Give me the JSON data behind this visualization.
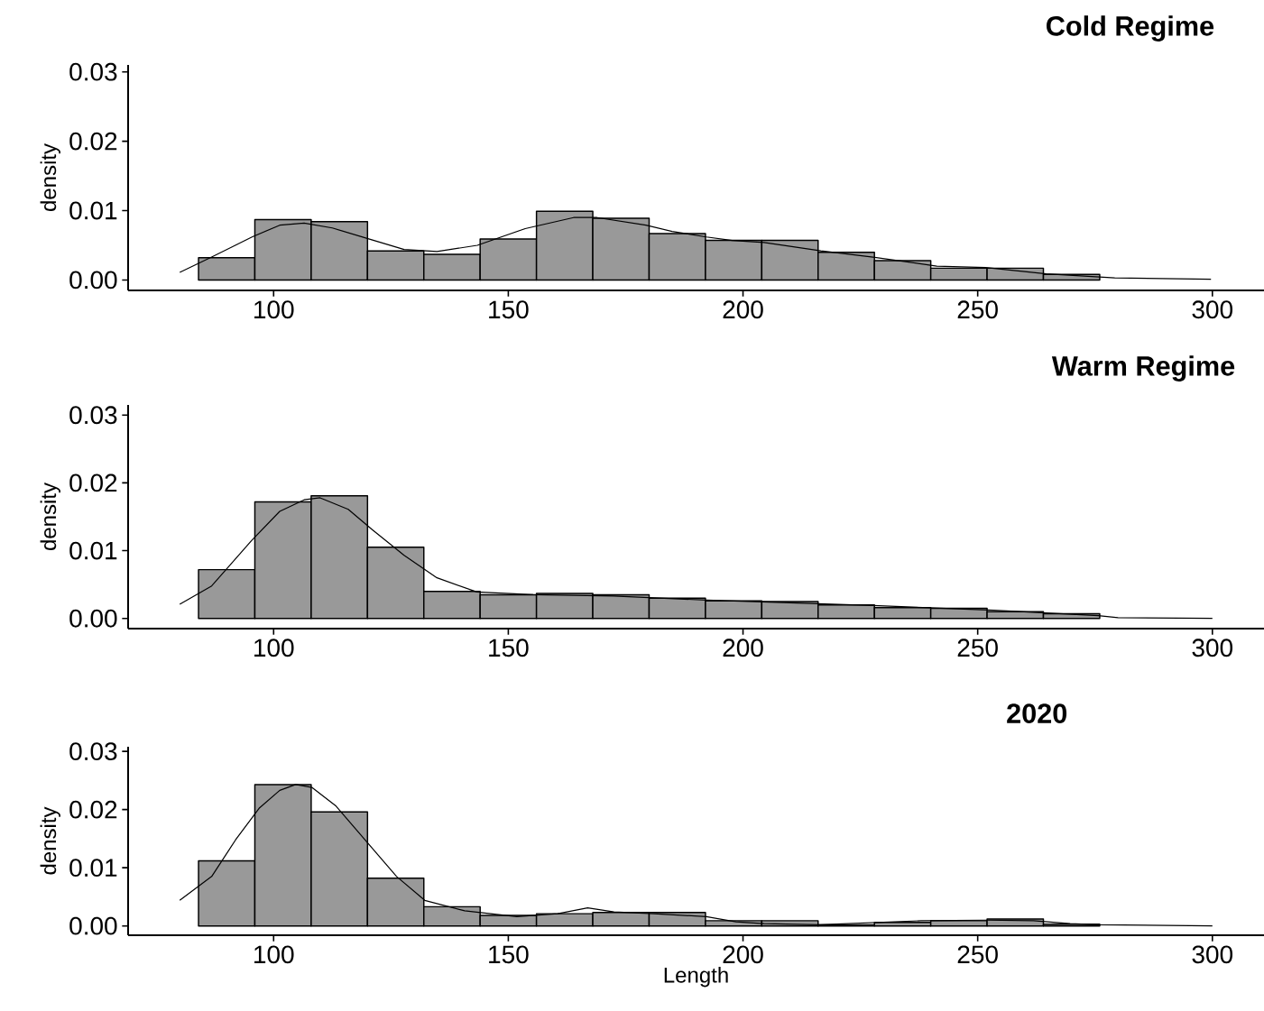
{
  "chart_data": [
    {
      "type": "histogram",
      "title": "Cold Regime",
      "ylabel": "density",
      "xlim": [
        69,
        311
      ],
      "ylim": [
        -0.0015,
        0.031
      ],
      "xticks": [
        100,
        150,
        200,
        250,
        300
      ],
      "yticks": [
        {
          "value": 0,
          "label": "0.00"
        },
        {
          "value": 0.01,
          "label": "0.01"
        },
        {
          "value": 0.02,
          "label": "0.02"
        },
        {
          "value": 0.03,
          "label": "0.03"
        }
      ],
      "series": [
        {
          "color": "#999999",
          "bins": [
            84,
            96,
            108,
            120,
            132,
            144,
            156,
            168,
            180,
            192,
            204,
            216,
            228,
            240,
            252,
            264,
            276
          ],
          "values": [
            0.0032,
            0.0087,
            0.0084,
            0.0042,
            0.0037,
            0.0059,
            0.0099,
            0.0089,
            0.0067,
            0.0057,
            0.0057,
            0.004,
            0.0028,
            0.0017,
            0.0017,
            0.0008
          ]
        },
        {
          "type": "line",
          "color": "#000000",
          "x": [
            80,
            86.8,
            95.4,
            101.3,
            106.5,
            112.5,
            120.9,
            127.8,
            134.8,
            143.4,
            153.6,
            163.9,
            168.9,
            179.3,
            184.9,
            192.2,
            197.7,
            204.5,
            216.6,
            227.7,
            241.3,
            251.7,
            264.6,
            279.2,
            299.7
          ],
          "values": [
            0.0011,
            0.0033,
            0.0062,
            0.0079,
            0.0082,
            0.0075,
            0.0058,
            0.0044,
            0.0041,
            0.005,
            0.0074,
            0.009,
            0.009,
            0.0079,
            0.007,
            0.0062,
            0.0057,
            0.0054,
            0.0042,
            0.0033,
            0.002,
            0.0018,
            0.0009,
            0.0003,
            0.0001
          ]
        }
      ]
    },
    {
      "type": "histogram",
      "title": "Warm Regime",
      "ylabel": "density",
      "xlim": [
        69,
        311
      ],
      "ylim": [
        -0.0015,
        0.0315
      ],
      "xticks": [
        100,
        150,
        200,
        250,
        300
      ],
      "yticks": [
        {
          "value": 0,
          "label": "0.00"
        },
        {
          "value": 0.01,
          "label": "0.01"
        },
        {
          "value": 0.02,
          "label": "0.02"
        },
        {
          "value": 0.03,
          "label": "0.03"
        }
      ],
      "series": [
        {
          "color": "#999999",
          "bins": [
            84,
            96,
            108,
            120,
            132,
            144,
            156,
            168,
            180,
            192,
            204,
            216,
            228,
            240,
            252,
            264,
            276
          ],
          "values": [
            0.0072,
            0.0172,
            0.0181,
            0.0105,
            0.004,
            0.0035,
            0.0037,
            0.0035,
            0.003,
            0.0026,
            0.0025,
            0.002,
            0.0016,
            0.0015,
            0.001,
            0.0007
          ]
        },
        {
          "type": "line",
          "color": "#000000",
          "x": [
            80,
            86.8,
            95.3,
            101.3,
            106.5,
            109.9,
            115.9,
            121,
            127.8,
            134.8,
            143.3,
            155.3,
            172.4,
            192.2,
            227.7,
            253.4,
            275.7,
            279.9,
            300
          ],
          "values": [
            0.0021,
            0.0048,
            0.0115,
            0.0158,
            0.0175,
            0.0178,
            0.0161,
            0.0131,
            0.0093,
            0.006,
            0.0039,
            0.0035,
            0.0033,
            0.0027,
            0.0019,
            0.0012,
            0.0004,
            0.0001,
            0
          ]
        }
      ]
    },
    {
      "type": "histogram",
      "title": "2020",
      "xlabel": "Length",
      "ylabel": "density",
      "xlim": [
        69,
        311
      ],
      "ylim": [
        -0.0016,
        0.0308
      ],
      "xticks": [
        100,
        150,
        200,
        250,
        300
      ],
      "yticks": [
        {
          "value": 0,
          "label": "0.00"
        },
        {
          "value": 0.01,
          "label": "0.01"
        },
        {
          "value": 0.02,
          "label": "0.02"
        },
        {
          "value": 0.03,
          "label": "0.03"
        }
      ],
      "series": [
        {
          "color": "#999999",
          "bins": [
            84,
            96,
            108,
            120,
            132,
            144,
            156,
            168,
            180,
            192,
            204,
            216,
            228,
            240,
            252,
            264,
            276
          ],
          "values": [
            0.0112,
            0.0243,
            0.0196,
            0.0082,
            0.0033,
            0.0018,
            0.0021,
            0.0023,
            0.0023,
            0.0009,
            0.0009,
            0.0002,
            0.0006,
            0.0009,
            0.0012,
            0.0003
          ]
        },
        {
          "type": "line",
          "color": "#000000",
          "x": [
            80,
            86.8,
            91.9,
            97,
            101.3,
            104.7,
            108.2,
            113.3,
            120.2,
            126.2,
            132.2,
            140.7,
            151.8,
            160.5,
            166.9,
            172.5,
            181,
            192.2,
            198.5,
            204.5,
            216.2,
            237.9,
            251.7,
            261.9,
            269.7,
            275.7,
            300
          ],
          "values": [
            0.0044,
            0.0085,
            0.0148,
            0.0203,
            0.0233,
            0.0243,
            0.0238,
            0.0206,
            0.0141,
            0.0085,
            0.0044,
            0.0026,
            0.0016,
            0.0021,
            0.0031,
            0.0024,
            0.0021,
            0.0016,
            0.0007,
            0.0004,
            0.0002,
            0.0009,
            0.001,
            0.0009,
            0.0004,
            0.0002,
            0
          ]
        }
      ]
    }
  ]
}
